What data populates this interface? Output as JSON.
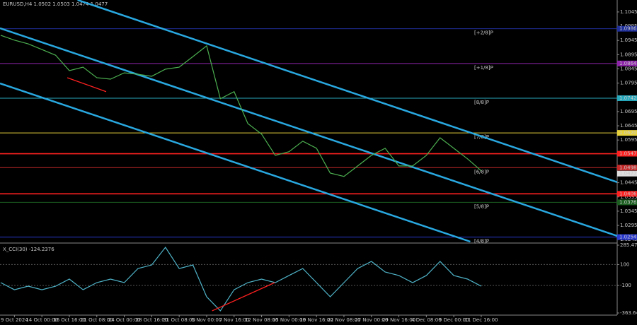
{
  "chart_data": [
    {
      "type": "line",
      "title": "EURUSD,H4  1.0502 1.0503 1.0474 1.0477",
      "xlim": [
        -0.05,
        44.9
      ],
      "xticks": [
        {
          "value": 1,
          "label": "9 Oct 2024"
        },
        {
          "value": 3,
          "label": "14 Oct 00:00"
        },
        {
          "value": 5,
          "label": "16 Oct 16:00"
        },
        {
          "value": 7,
          "label": "21 Oct 08:00"
        },
        {
          "value": 9,
          "label": "24 Oct 00:00"
        },
        {
          "value": 11,
          "label": "28 Oct 16:00"
        },
        {
          "value": 13,
          "label": "31 Oct 08:00"
        },
        {
          "value": 15,
          "label": "5 Nov 00:00"
        },
        {
          "value": 17,
          "label": "7 Nov 16:00"
        },
        {
          "value": 19,
          "label": "12 Nov 08:00"
        },
        {
          "value": 21,
          "label": "15 Nov 00:00"
        },
        {
          "value": 23,
          "label": "19 Nov 16:00"
        },
        {
          "value": 25,
          "label": "22 Nov 08:00"
        },
        {
          "value": 27,
          "label": "27 Nov 00:00"
        },
        {
          "value": 29,
          "label": "29 Nov 16:00"
        },
        {
          "value": 31,
          "label": "4 Dec 08:00"
        },
        {
          "value": 33,
          "label": "9 Dec 00:00"
        },
        {
          "value": 35,
          "label": "11 Dec 16:00"
        }
      ],
      "ylim": [
        1.0238,
        1.1087
      ],
      "yticks": [
        1.1045,
        1.0995,
        1.0945,
        1.0895,
        1.0845,
        1.0795,
        1.0745,
        1.0695,
        1.0645,
        1.0595,
        1.0545,
        1.0495,
        1.0445,
        1.0395,
        1.0345,
        1.0295,
        1.0245
      ],
      "series": [
        {
          "color": "#4caf50",
          "values": [
            1.0963,
            1.0946,
            1.0933,
            1.0913,
            1.0893,
            1.0839,
            1.0851,
            1.0814,
            1.0809,
            1.0831,
            1.0826,
            1.0819,
            1.0844,
            1.0851,
            1.0888,
            1.0926,
            1.074,
            1.0765,
            1.0653,
            1.0616,
            1.0541,
            1.0554,
            1.0591,
            1.0566,
            1.0479,
            1.0467,
            1.0504,
            1.0541,
            1.0566,
            1.0504,
            1.0504,
            1.0541,
            1.0603,
            1.0566,
            1.0529,
            1.0487
          ]
        }
      ],
      "levels": [
        {
          "label": "[+2/8]P",
          "value": 1.0986,
          "value_label": "1.0986",
          "color": "#1f2f9a"
        },
        {
          "label": "[+1/8]P",
          "value": 1.0864,
          "value_label": "1.0864",
          "color": "#8e24aa"
        },
        {
          "label": "[8/8]P",
          "value": 1.0742,
          "value_label": "1.0742",
          "color": "#26a9bd"
        },
        {
          "label": "[7/8]P",
          "value": 1.062,
          "value_label": "1.0620",
          "color": "#e8d23a"
        },
        {
          "label": "[6/8]P",
          "value": 1.0498,
          "value_label": "1.0498",
          "color": "#c62828"
        },
        {
          "label": "[5/8]P",
          "value": 1.0376,
          "value_label": "1.0376",
          "color": "#1b5e20"
        },
        {
          "label": "[4/8]P",
          "value": 1.0254,
          "value_label": "1.0254",
          "color": "#2a3ad0"
        }
      ],
      "support": [
        {
          "value": 1.0547,
          "value_label": "1.0547",
          "color": "#ff2020"
        },
        {
          "value": 1.0406,
          "value_label": "1.0406",
          "color": "#ff2020"
        }
      ],
      "current_price": 1.0477,
      "channels": [
        {
          "color": "#29a8e0",
          "x": [
            5.6,
            44.9
          ],
          "values": [
            1.1087,
            1.0447
          ]
        },
        {
          "color": "#29a8e0",
          "x": [
            -0.05,
            44.9
          ],
          "values": [
            1.0988,
            1.0258
          ]
        },
        {
          "color": "#29a8e0",
          "x": [
            -0.05,
            34.2
          ],
          "values": [
            1.0794,
            1.0238
          ]
        }
      ],
      "divergence": {
        "color": "#ff2020",
        "x": [
          4.85,
          7.68
        ],
        "values": [
          1.0814,
          1.0765
        ]
      }
    },
    {
      "type": "line",
      "title": "X_CCI(30) -124.2376",
      "xlim": [
        -0.05,
        44.9
      ],
      "ylim": [
        -363.641,
        285.4725
      ],
      "yticks": [
        285.4725,
        100,
        -100,
        -363.641
      ],
      "series": [
        {
          "color": "#4fb3c8",
          "values": [
            -73,
            -141,
            -107,
            -141,
            -107,
            -39,
            -141,
            -73,
            -39,
            -73,
            62,
            96,
            265,
            62,
            96,
            -208,
            -343,
            -141,
            -73,
            -39,
            -73,
            -5,
            62,
            -73,
            -208,
            -73,
            62,
            130,
            29,
            -5,
            -73,
            -5,
            130,
            -5,
            -39,
            -107
          ]
        }
      ],
      "divergence": {
        "color": "#ff2020",
        "x": [
          15.4,
          19.95
        ],
        "values": [
          -343,
          -73
        ]
      }
    }
  ]
}
